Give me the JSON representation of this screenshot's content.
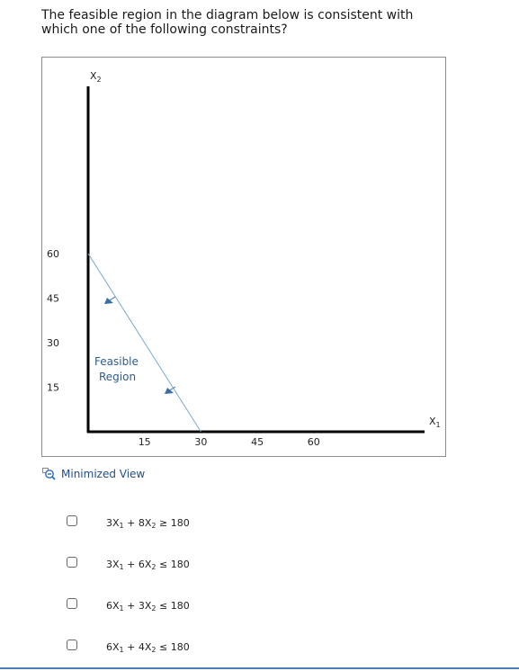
{
  "question": {
    "text": "The feasible region in the diagram below is consistent with which one of the following constraints?"
  },
  "chart_data": {
    "type": "line",
    "x_axis_label": "X1",
    "y_axis_label": "X2",
    "x_ticks": [
      "15",
      "30",
      "45",
      "60"
    ],
    "y_ticks": [
      "60",
      "45",
      "30",
      "15"
    ],
    "xlim": [
      0,
      90
    ],
    "ylim": [
      0,
      123
    ],
    "constraint_line": {
      "x": [
        0,
        30
      ],
      "y": [
        60,
        0
      ]
    },
    "region_label_line1": "Feasible",
    "region_label_line2": "Region",
    "arrow_color": "#3a6ea5",
    "line_color": "#7aa9d4"
  },
  "minimize": {
    "label": "Minimized View",
    "icon": "magnifier-minus-icon"
  },
  "options": [
    {
      "a": "3X",
      "b": "+ 8X",
      "op": "≥",
      "rhs": "180"
    },
    {
      "a": "3X",
      "b": "+ 6X",
      "op": "≤",
      "rhs": "180"
    },
    {
      "a": "6X",
      "b": "+ 3X",
      "op": "≤",
      "rhs": "180"
    },
    {
      "a": "6X",
      "b": "+ 4X",
      "op": "≤",
      "rhs": "180"
    }
  ],
  "subscripts": {
    "one": "1",
    "two": "2"
  }
}
